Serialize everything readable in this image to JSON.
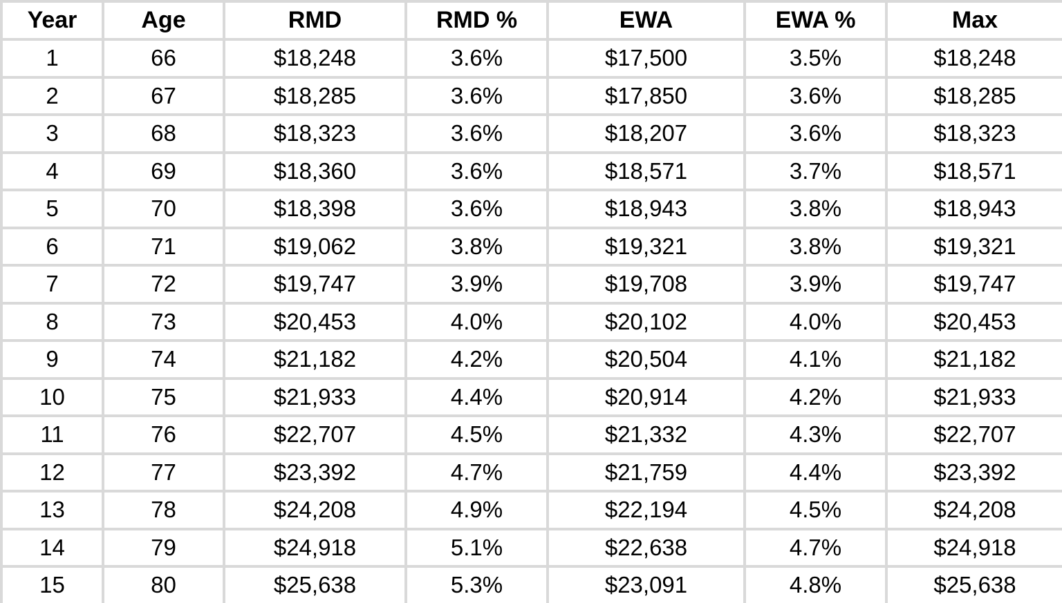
{
  "chart_data": {
    "type": "table",
    "title": "",
    "columns": [
      "Year",
      "Age",
      "RMD",
      "RMD %",
      "EWA",
      "EWA %",
      "Max"
    ],
    "rows": [
      [
        "1",
        "66",
        "$18,248",
        "3.6%",
        "$17,500",
        "3.5%",
        "$18,248"
      ],
      [
        "2",
        "67",
        "$18,285",
        "3.6%",
        "$17,850",
        "3.6%",
        "$18,285"
      ],
      [
        "3",
        "68",
        "$18,323",
        "3.6%",
        "$18,207",
        "3.6%",
        "$18,323"
      ],
      [
        "4",
        "69",
        "$18,360",
        "3.6%",
        "$18,571",
        "3.7%",
        "$18,571"
      ],
      [
        "5",
        "70",
        "$18,398",
        "3.6%",
        "$18,943",
        "3.8%",
        "$18,943"
      ],
      [
        "6",
        "71",
        "$19,062",
        "3.8%",
        "$19,321",
        "3.8%",
        "$19,321"
      ],
      [
        "7",
        "72",
        "$19,747",
        "3.9%",
        "$19,708",
        "3.9%",
        "$19,747"
      ],
      [
        "8",
        "73",
        "$20,453",
        "4.0%",
        "$20,102",
        "4.0%",
        "$20,453"
      ],
      [
        "9",
        "74",
        "$21,182",
        "4.2%",
        "$20,504",
        "4.1%",
        "$21,182"
      ],
      [
        "10",
        "75",
        "$21,933",
        "4.4%",
        "$20,914",
        "4.2%",
        "$21,933"
      ],
      [
        "11",
        "76",
        "$22,707",
        "4.5%",
        "$21,332",
        "4.3%",
        "$22,707"
      ],
      [
        "12",
        "77",
        "$23,392",
        "4.7%",
        "$21,759",
        "4.4%",
        "$23,392"
      ],
      [
        "13",
        "78",
        "$24,208",
        "4.9%",
        "$22,194",
        "4.5%",
        "$24,208"
      ],
      [
        "14",
        "79",
        "$24,918",
        "5.1%",
        "$22,638",
        "4.7%",
        "$24,918"
      ],
      [
        "15",
        "80",
        "$25,638",
        "5.3%",
        "$23,091",
        "4.8%",
        "$25,638"
      ]
    ]
  },
  "colors": {
    "gridline": "#d9d9d9",
    "text": "#000000",
    "background": "#ffffff"
  }
}
